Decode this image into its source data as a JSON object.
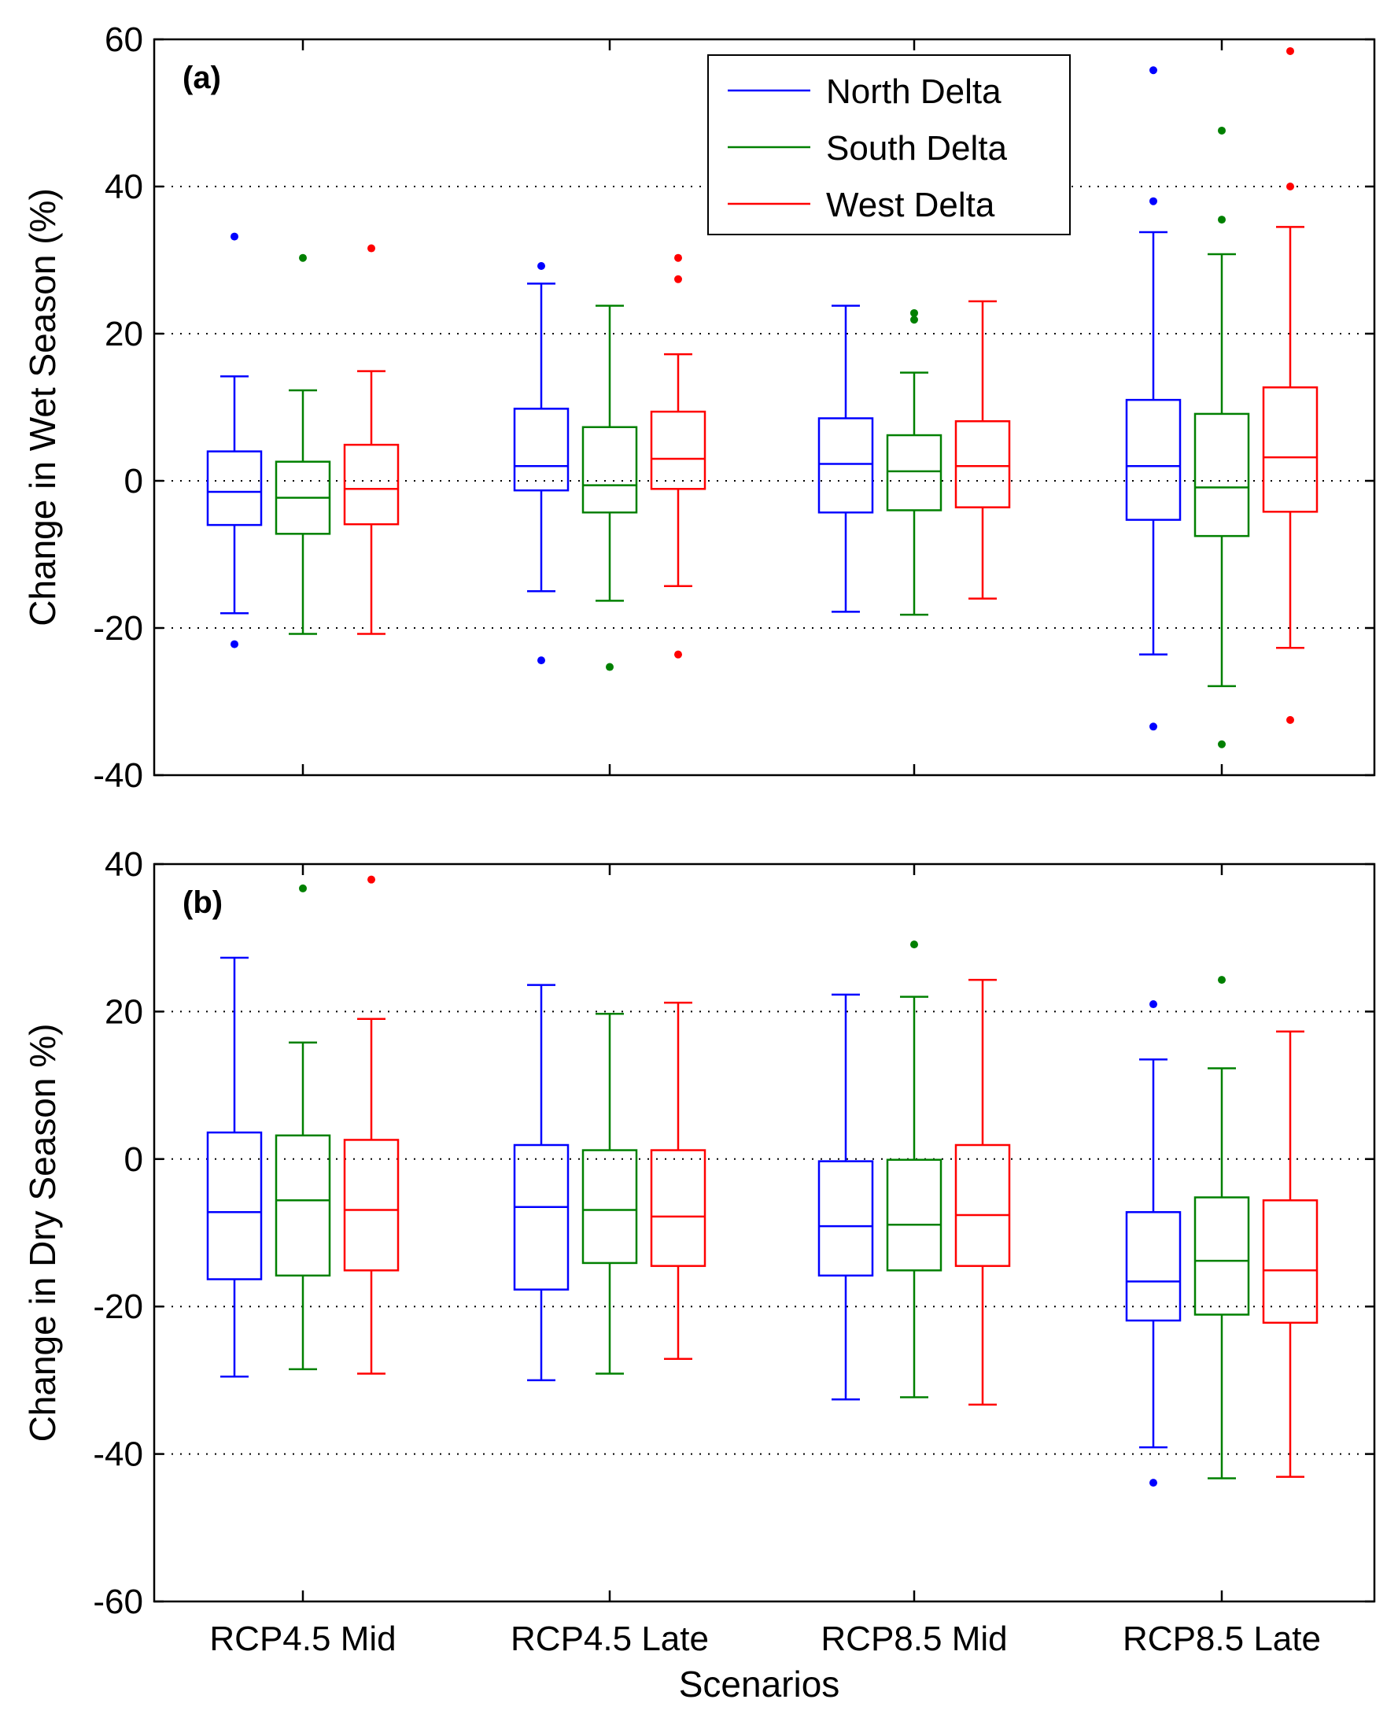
{
  "chart_data": [
    {
      "type": "box",
      "panel_label": "(a)",
      "ylabel": "Change in Wet Season (%)",
      "xlabel": "",
      "ylim": [
        -40,
        60
      ],
      "yticks": [
        -40,
        -20,
        0,
        20,
        40,
        60
      ],
      "ytick_labels": [
        "-40",
        "-20",
        "0",
        "20",
        "40",
        "60"
      ],
      "grid": true,
      "legend_position": "top-right",
      "categories": [
        "RCP4.5 Mid",
        "RCP4.5 Late",
        "RCP8.5 Mid",
        "RCP8.5 Late"
      ],
      "series": [
        {
          "name": "North Delta",
          "color": "#0000ff",
          "boxes": [
            {
              "whisker_low": -18,
              "q1": -6,
              "median": -1.5,
              "q3": 4,
              "whisker_high": 14.2,
              "outliers": [
                33.2,
                -22.2
              ]
            },
            {
              "whisker_low": -15,
              "q1": -1.3,
              "median": 2,
              "q3": 9.8,
              "whisker_high": 26.8,
              "outliers": [
                29.2,
                -24.4
              ]
            },
            {
              "whisker_low": -17.8,
              "q1": -4.3,
              "median": 2.3,
              "q3": 8.5,
              "whisker_high": 23.8,
              "outliers": []
            },
            {
              "whisker_low": -23.6,
              "q1": -5.3,
              "median": 2,
              "q3": 11,
              "whisker_high": 33.8,
              "outliers": [
                55.8,
                38,
                -33.4
              ]
            }
          ]
        },
        {
          "name": "South Delta",
          "color": "#008000",
          "boxes": [
            {
              "whisker_low": -20.8,
              "q1": -7.2,
              "median": -2.3,
              "q3": 2.6,
              "whisker_high": 12.3,
              "outliers": [
                30.3
              ]
            },
            {
              "whisker_low": -16.3,
              "q1": -4.3,
              "median": -0.6,
              "q3": 7.3,
              "whisker_high": 23.8,
              "outliers": [
                -25.3
              ]
            },
            {
              "whisker_low": -18.2,
              "q1": -4,
              "median": 1.3,
              "q3": 6.2,
              "whisker_high": 14.7,
              "outliers": [
                22.8,
                21.9
              ]
            },
            {
              "whisker_low": -27.9,
              "q1": -7.5,
              "median": -0.9,
              "q3": 9.1,
              "whisker_high": 30.8,
              "outliers": [
                47.6,
                35.5,
                -35.8
              ]
            }
          ]
        },
        {
          "name": "West Delta",
          "color": "#ff0000",
          "boxes": [
            {
              "whisker_low": -20.8,
              "q1": -5.9,
              "median": -1.1,
              "q3": 4.9,
              "whisker_high": 14.9,
              "outliers": [
                31.6
              ]
            },
            {
              "whisker_low": -14.3,
              "q1": -1.1,
              "median": 3,
              "q3": 9.4,
              "whisker_high": 17.2,
              "outliers": [
                30.3,
                27.4,
                -23.6
              ]
            },
            {
              "whisker_low": -16,
              "q1": -3.6,
              "median": 2,
              "q3": 8.1,
              "whisker_high": 24.4,
              "outliers": []
            },
            {
              "whisker_low": -22.7,
              "q1": -4.2,
              "median": 3.2,
              "q3": 12.7,
              "whisker_high": 34.5,
              "outliers": [
                58.4,
                40,
                -32.5
              ]
            }
          ]
        }
      ]
    },
    {
      "type": "box",
      "panel_label": "(b)",
      "ylabel": "Change in Dry Season %)",
      "xlabel": "Scenarios",
      "ylim": [
        -60,
        40
      ],
      "yticks": [
        -60,
        -40,
        -20,
        0,
        20,
        40
      ],
      "ytick_labels": [
        "-60",
        "-40",
        "-20",
        "0",
        "20",
        "40"
      ],
      "grid": true,
      "categories": [
        "RCP4.5 Mid",
        "RCP4.5 Late",
        "RCP8.5 Mid",
        "RCP8.5 Late"
      ],
      "series": [
        {
          "name": "North Delta",
          "color": "#0000ff",
          "boxes": [
            {
              "whisker_low": -29.5,
              "q1": -16.3,
              "median": -7.2,
              "q3": 3.6,
              "whisker_high": 27.3,
              "outliers": []
            },
            {
              "whisker_low": -30,
              "q1": -17.7,
              "median": -6.5,
              "q3": 1.9,
              "whisker_high": 23.6,
              "outliers": []
            },
            {
              "whisker_low": -32.6,
              "q1": -15.8,
              "median": -9.1,
              "q3": -0.3,
              "whisker_high": 22.3,
              "outliers": []
            },
            {
              "whisker_low": -39.1,
              "q1": -21.9,
              "median": -16.6,
              "q3": -7.2,
              "whisker_high": 13.5,
              "outliers": [
                21,
                -43.9
              ]
            }
          ]
        },
        {
          "name": "South Delta",
          "color": "#008000",
          "boxes": [
            {
              "whisker_low": -28.5,
              "q1": -15.8,
              "median": -5.6,
              "q3": 3.2,
              "whisker_high": 15.8,
              "outliers": [
                36.7
              ]
            },
            {
              "whisker_low": -29.1,
              "q1": -14.1,
              "median": -6.9,
              "q3": 1.2,
              "whisker_high": 19.7,
              "outliers": []
            },
            {
              "whisker_low": -32.3,
              "q1": -15.1,
              "median": -8.9,
              "q3": -0.1,
              "whisker_high": 22,
              "outliers": [
                29.1
              ]
            },
            {
              "whisker_low": -43.3,
              "q1": -21.1,
              "median": -13.8,
              "q3": -5.2,
              "whisker_high": 12.3,
              "outliers": [
                24.3
              ]
            }
          ]
        },
        {
          "name": "West Delta",
          "color": "#ff0000",
          "boxes": [
            {
              "whisker_low": -29.1,
              "q1": -15.1,
              "median": -6.9,
              "q3": 2.6,
              "whisker_high": 19,
              "outliers": [
                37.9
              ]
            },
            {
              "whisker_low": -27.1,
              "q1": -14.5,
              "median": -7.8,
              "q3": 1.2,
              "whisker_high": 21.2,
              "outliers": []
            },
            {
              "whisker_low": -33.3,
              "q1": -14.5,
              "median": -7.6,
              "q3": 1.9,
              "whisker_high": 24.3,
              "outliers": []
            },
            {
              "whisker_low": -43.1,
              "q1": -22.2,
              "median": -15.1,
              "q3": -5.6,
              "whisker_high": 17.3,
              "outliers": []
            }
          ]
        }
      ]
    }
  ]
}
